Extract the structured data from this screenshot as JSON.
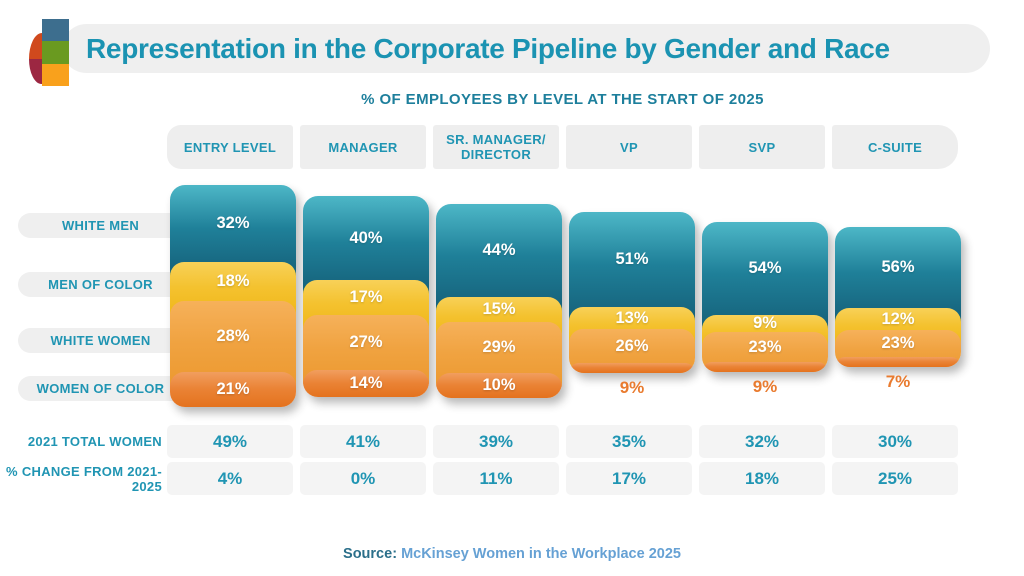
{
  "title": "Representation in the Corporate Pipeline by Gender and Race",
  "subtitle": "% OF EMPLOYEES BY LEVEL AT THE START OF 2025",
  "source": {
    "label": "Source:",
    "text": "McKinsey Women in the Workplace 2025"
  },
  "chart_data": {
    "type": "bar",
    "stacked": true,
    "unit": "percent",
    "title": "Representation in the Corporate Pipeline by Gender and Race",
    "subtitle": "% OF EMPLOYEES BY LEVEL AT THE START OF 2025",
    "categories": [
      "ENTRY LEVEL",
      "MANAGER",
      "SR. MANAGER/ DIRECTOR",
      "VP",
      "SVP",
      "C-SUITE"
    ],
    "series": [
      {
        "name": "WHITE MEN",
        "values": [
          32,
          40,
          44,
          51,
          54,
          56
        ],
        "labels": [
          "32%",
          "40%",
          "44%",
          "51%",
          "54%",
          "56%"
        ],
        "color_top": "#4db7c7",
        "color_mid": "#1f8099",
        "color_bottom": "#156079"
      },
      {
        "name": "MEN OF COLOR",
        "values": [
          18,
          17,
          15,
          13,
          9,
          12
        ],
        "labels": [
          "18%",
          "17%",
          "15%",
          "13%",
          "9%",
          "12%"
        ],
        "color_top": "#f8d158",
        "color_mid": "#f4c22f",
        "color_bottom": "#f0b71a"
      },
      {
        "name": "WHITE WOMEN",
        "values": [
          28,
          27,
          29,
          26,
          23,
          23
        ],
        "labels": [
          "28%",
          "27%",
          "29%",
          "26%",
          "23%",
          "23%"
        ],
        "color_top": "#f6b15a",
        "color_mid": "#f0a341",
        "color_bottom": "#ec9930"
      },
      {
        "name": "WOMEN OF COLOR",
        "values": [
          21,
          14,
          10,
          9,
          9,
          7
        ],
        "labels": [
          "21%",
          "14%",
          "10%",
          "9%",
          "9%",
          "7%"
        ],
        "color_top": "#f19e5f",
        "color_mid": "#ea8335",
        "color_bottom": "#e4721e"
      }
    ],
    "footer_rows": [
      {
        "label": "2021 TOTAL WOMEN",
        "values": [
          "49%",
          "41%",
          "39%",
          "35%",
          "32%",
          "30%"
        ]
      },
      {
        "label": "% CHANGE FROM 2021-2025",
        "values": [
          "4%",
          "0%",
          "11%",
          "17%",
          "18%",
          "25%"
        ]
      }
    ]
  },
  "logo_colors": {
    "red_orange": "#d0491d",
    "maroon": "#9c2742",
    "blue": "#3d6e8e",
    "green": "#6a9a20",
    "amber": "#f9a11c"
  },
  "accent_colors": {
    "teal_text": "#2095b3",
    "orange_label": "#e97b2f",
    "panel_gray": "#efefef"
  }
}
